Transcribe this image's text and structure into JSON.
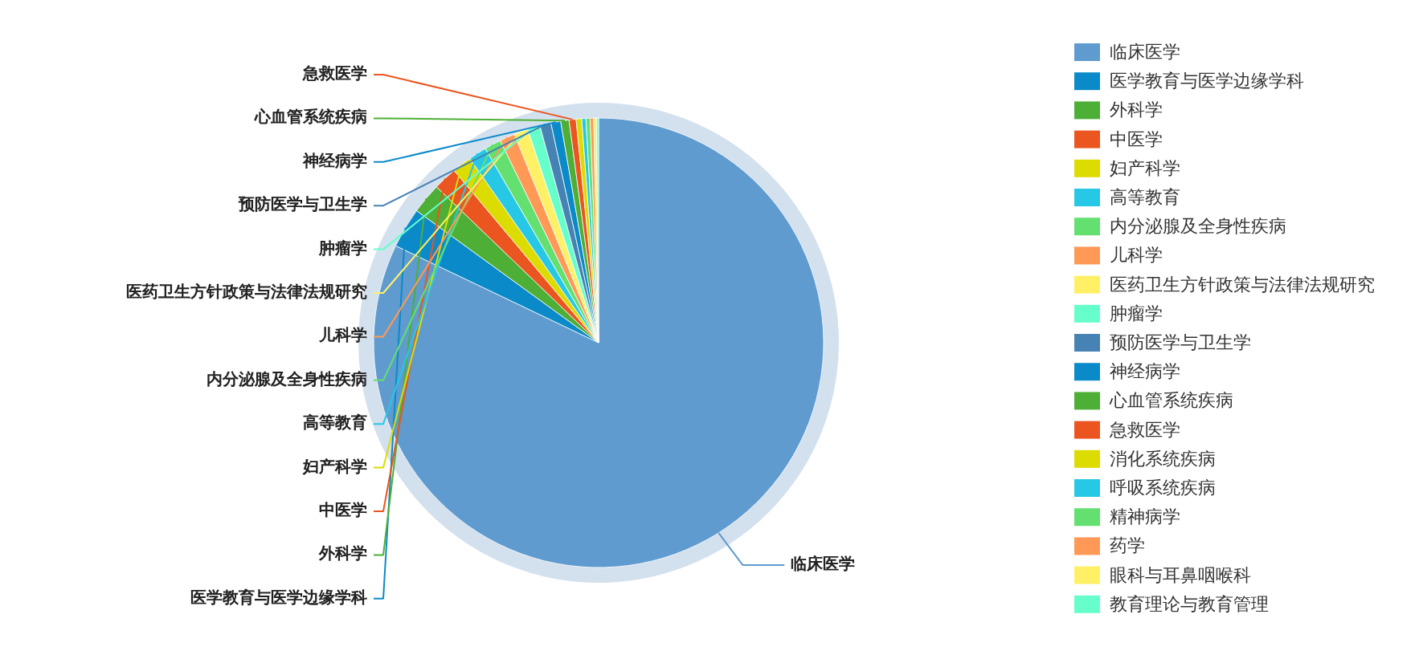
{
  "chart_data": {
    "type": "pie",
    "legend": "right",
    "categories": [
      "临床医学",
      "医学教育与医学边缘学科",
      "外科学",
      "中医学",
      "妇产科学",
      "高等教育",
      "内分泌腺及全身性疾病",
      "儿科学",
      "医药卫生方针政策与法律法规研究",
      "肿瘤学",
      "预防医学与卫生学",
      "神经病学",
      "心血管系统疾病",
      "急救医学",
      "消化系统疾病",
      "呼吸系统疾病",
      "精神病学",
      "药学",
      "眼科与耳鼻咽喉科",
      "教育理论与教育管理"
    ],
    "values": [
      82.1,
      2.9,
      2.2,
      1.7,
      1.4,
      1.3,
      1.2,
      1.1,
      1.0,
      0.9,
      0.8,
      0.7,
      0.6,
      0.5,
      0.4,
      0.3,
      0.3,
      0.25,
      0.2,
      0.15
    ],
    "colors": [
      "#5f9bcf",
      "#0b8ac9",
      "#4daf36",
      "#ea5520",
      "#dcdc00",
      "#26c8e5",
      "#63e06f",
      "#ff9955",
      "#fff066",
      "#66ffcc",
      "#4682b4",
      "#0b8ac9",
      "#4daf36",
      "#ea5520",
      "#dcdc00",
      "#26c8e5",
      "#63e06f",
      "#ff9955",
      "#fff066",
      "#66ffcc"
    ]
  }
}
